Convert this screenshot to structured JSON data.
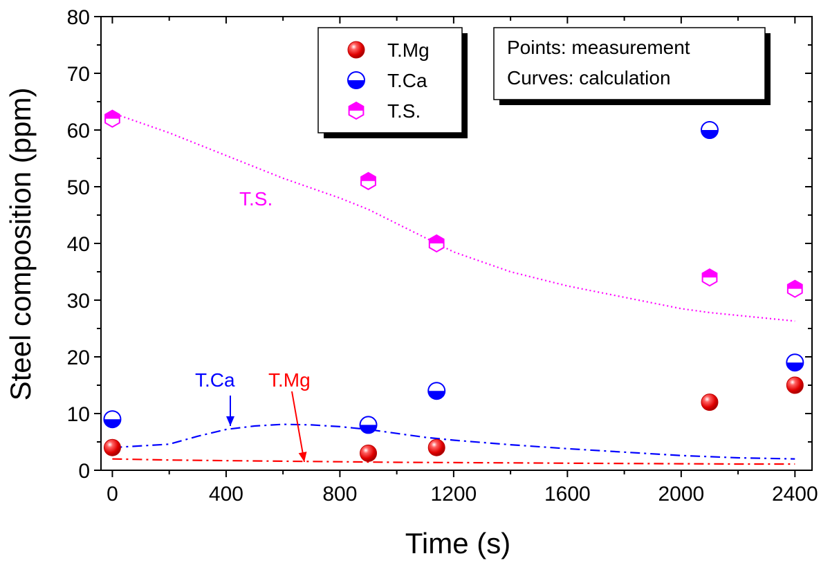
{
  "colors": {
    "mg": "#ff0000",
    "ca": "#0000ff",
    "s": "#ff00ff",
    "axis": "#000000",
    "background": "#ffffff"
  },
  "chart_data": {
    "type": "scatter",
    "xlabel": "Time (s)",
    "ylabel": "Steel composition (ppm)",
    "xlim": [
      -40,
      2460
    ],
    "ylim": [
      0,
      80
    ],
    "xticks": [
      0,
      400,
      800,
      1200,
      1600,
      2000,
      2400
    ],
    "yticks": [
      0,
      10,
      20,
      30,
      40,
      50,
      60,
      70,
      80
    ],
    "grid": false,
    "legend_position": "top-center",
    "note_lines": [
      "Points: measurement",
      "Curves: calculation"
    ],
    "series": [
      {
        "key": "mg",
        "name": "T.Mg",
        "marker": "sphere",
        "points": [
          [
            0,
            4
          ],
          [
            900,
            3
          ],
          [
            1140,
            4
          ],
          [
            2100,
            12
          ],
          [
            2400,
            15
          ]
        ],
        "curve_label": "T.Mg",
        "curve_style": "dash-dot",
        "curve": [
          [
            0,
            2.0
          ],
          [
            200,
            1.8
          ],
          [
            400,
            1.7
          ],
          [
            600,
            1.6
          ],
          [
            800,
            1.5
          ],
          [
            1000,
            1.4
          ],
          [
            1200,
            1.35
          ],
          [
            1400,
            1.3
          ],
          [
            1600,
            1.25
          ],
          [
            1800,
            1.2
          ],
          [
            2000,
            1.15
          ],
          [
            2200,
            1.1
          ],
          [
            2400,
            1.1
          ]
        ]
      },
      {
        "key": "ca",
        "name": "T.Ca",
        "marker": "half-filled-circle",
        "points": [
          [
            0,
            9
          ],
          [
            900,
            8
          ],
          [
            1140,
            14
          ],
          [
            2100,
            60
          ],
          [
            2400,
            19
          ]
        ],
        "curve_label": "T.Ca",
        "curve_style": "dash-dot",
        "curve": [
          [
            0,
            4
          ],
          [
            200,
            4.6
          ],
          [
            300,
            6.0
          ],
          [
            400,
            7.2
          ],
          [
            500,
            7.8
          ],
          [
            600,
            8.1
          ],
          [
            700,
            8.0
          ],
          [
            800,
            7.7
          ],
          [
            900,
            7.2
          ],
          [
            1000,
            6.5
          ],
          [
            1100,
            5.8
          ],
          [
            1200,
            5.3
          ],
          [
            1400,
            4.5
          ],
          [
            1600,
            3.8
          ],
          [
            1800,
            3.2
          ],
          [
            2000,
            2.6
          ],
          [
            2200,
            2.2
          ],
          [
            2400,
            2.0
          ]
        ]
      },
      {
        "key": "s",
        "name": "T.S.",
        "marker": "half-filled-hexagon",
        "points": [
          [
            0,
            62
          ],
          [
            900,
            51
          ],
          [
            1140,
            40
          ],
          [
            2100,
            34
          ],
          [
            2400,
            32
          ]
        ],
        "curve_label": "T.S.",
        "curve_style": "dotted",
        "curve": [
          [
            0,
            63
          ],
          [
            200,
            59.5
          ],
          [
            400,
            55.5
          ],
          [
            600,
            51.5
          ],
          [
            800,
            48
          ],
          [
            900,
            46
          ],
          [
            1000,
            43.5
          ],
          [
            1100,
            41
          ],
          [
            1200,
            38.5
          ],
          [
            1400,
            35
          ],
          [
            1600,
            32.5
          ],
          [
            1800,
            30.5
          ],
          [
            2000,
            28.5
          ],
          [
            2100,
            27.8
          ],
          [
            2200,
            27.3
          ],
          [
            2400,
            26.3
          ]
        ]
      }
    ]
  }
}
